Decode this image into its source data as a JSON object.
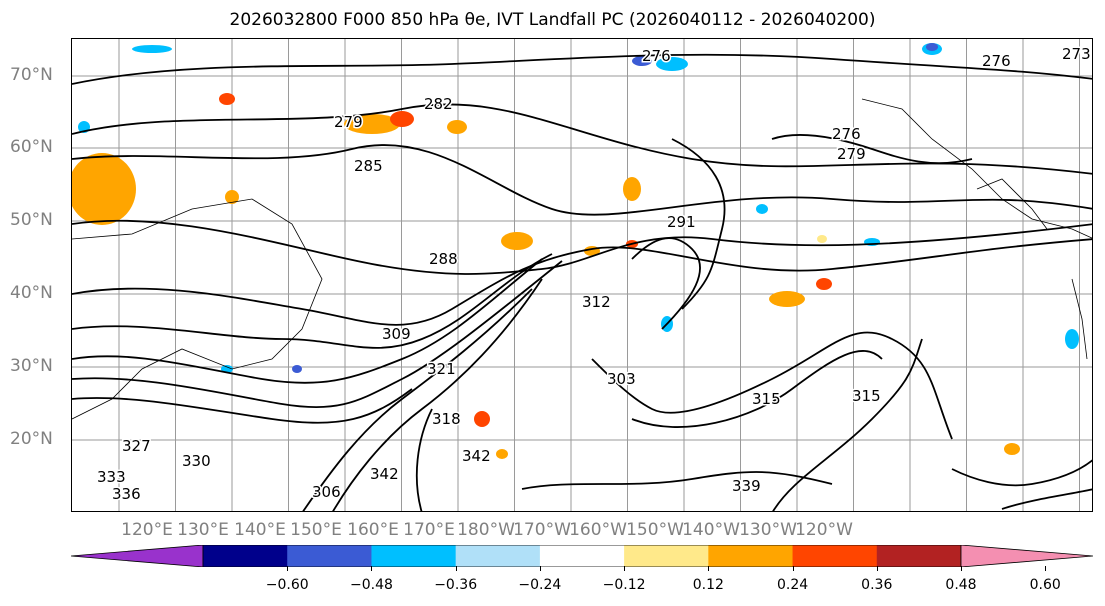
{
  "title": "2026032800 F000 850 hPa θe, IVT Landfall PC (2026040112 - 2026040200)",
  "map": {
    "lat_labels": [
      "70°N",
      "60°N",
      "50°N",
      "40°N",
      "30°N",
      "20°N"
    ],
    "lon_labels": [
      "120°E",
      "130°E",
      "140°E",
      "150°E",
      "160°E",
      "170°E",
      "180°W",
      "170°W",
      "160°W",
      "150°W",
      "140°W",
      "130°W",
      "120°W"
    ],
    "contour_labels": [
      "276",
      "276",
      "273",
      "279",
      "282",
      "276",
      "279",
      "285",
      "288",
      "291",
      "312",
      "309",
      "321",
      "318",
      "303",
      "315",
      "315",
      "342",
      "342",
      "339",
      "306",
      "327",
      "330",
      "336",
      "333"
    ]
  },
  "colorbar": {
    "colors": [
      "#9932cc",
      "#00008b",
      "#3b5bd4",
      "#00bfff",
      "#b0e0f8",
      "#ffffff",
      "#ffe98a",
      "#ffa500",
      "#ff4500",
      "#b22222",
      "#f48fb1"
    ],
    "ticks": [
      "−0.60",
      "−0.48",
      "−0.36",
      "−0.24",
      "−0.12",
      "0.12",
      "0.24",
      "0.36",
      "0.48",
      "0.60"
    ],
    "extend": "both"
  }
}
